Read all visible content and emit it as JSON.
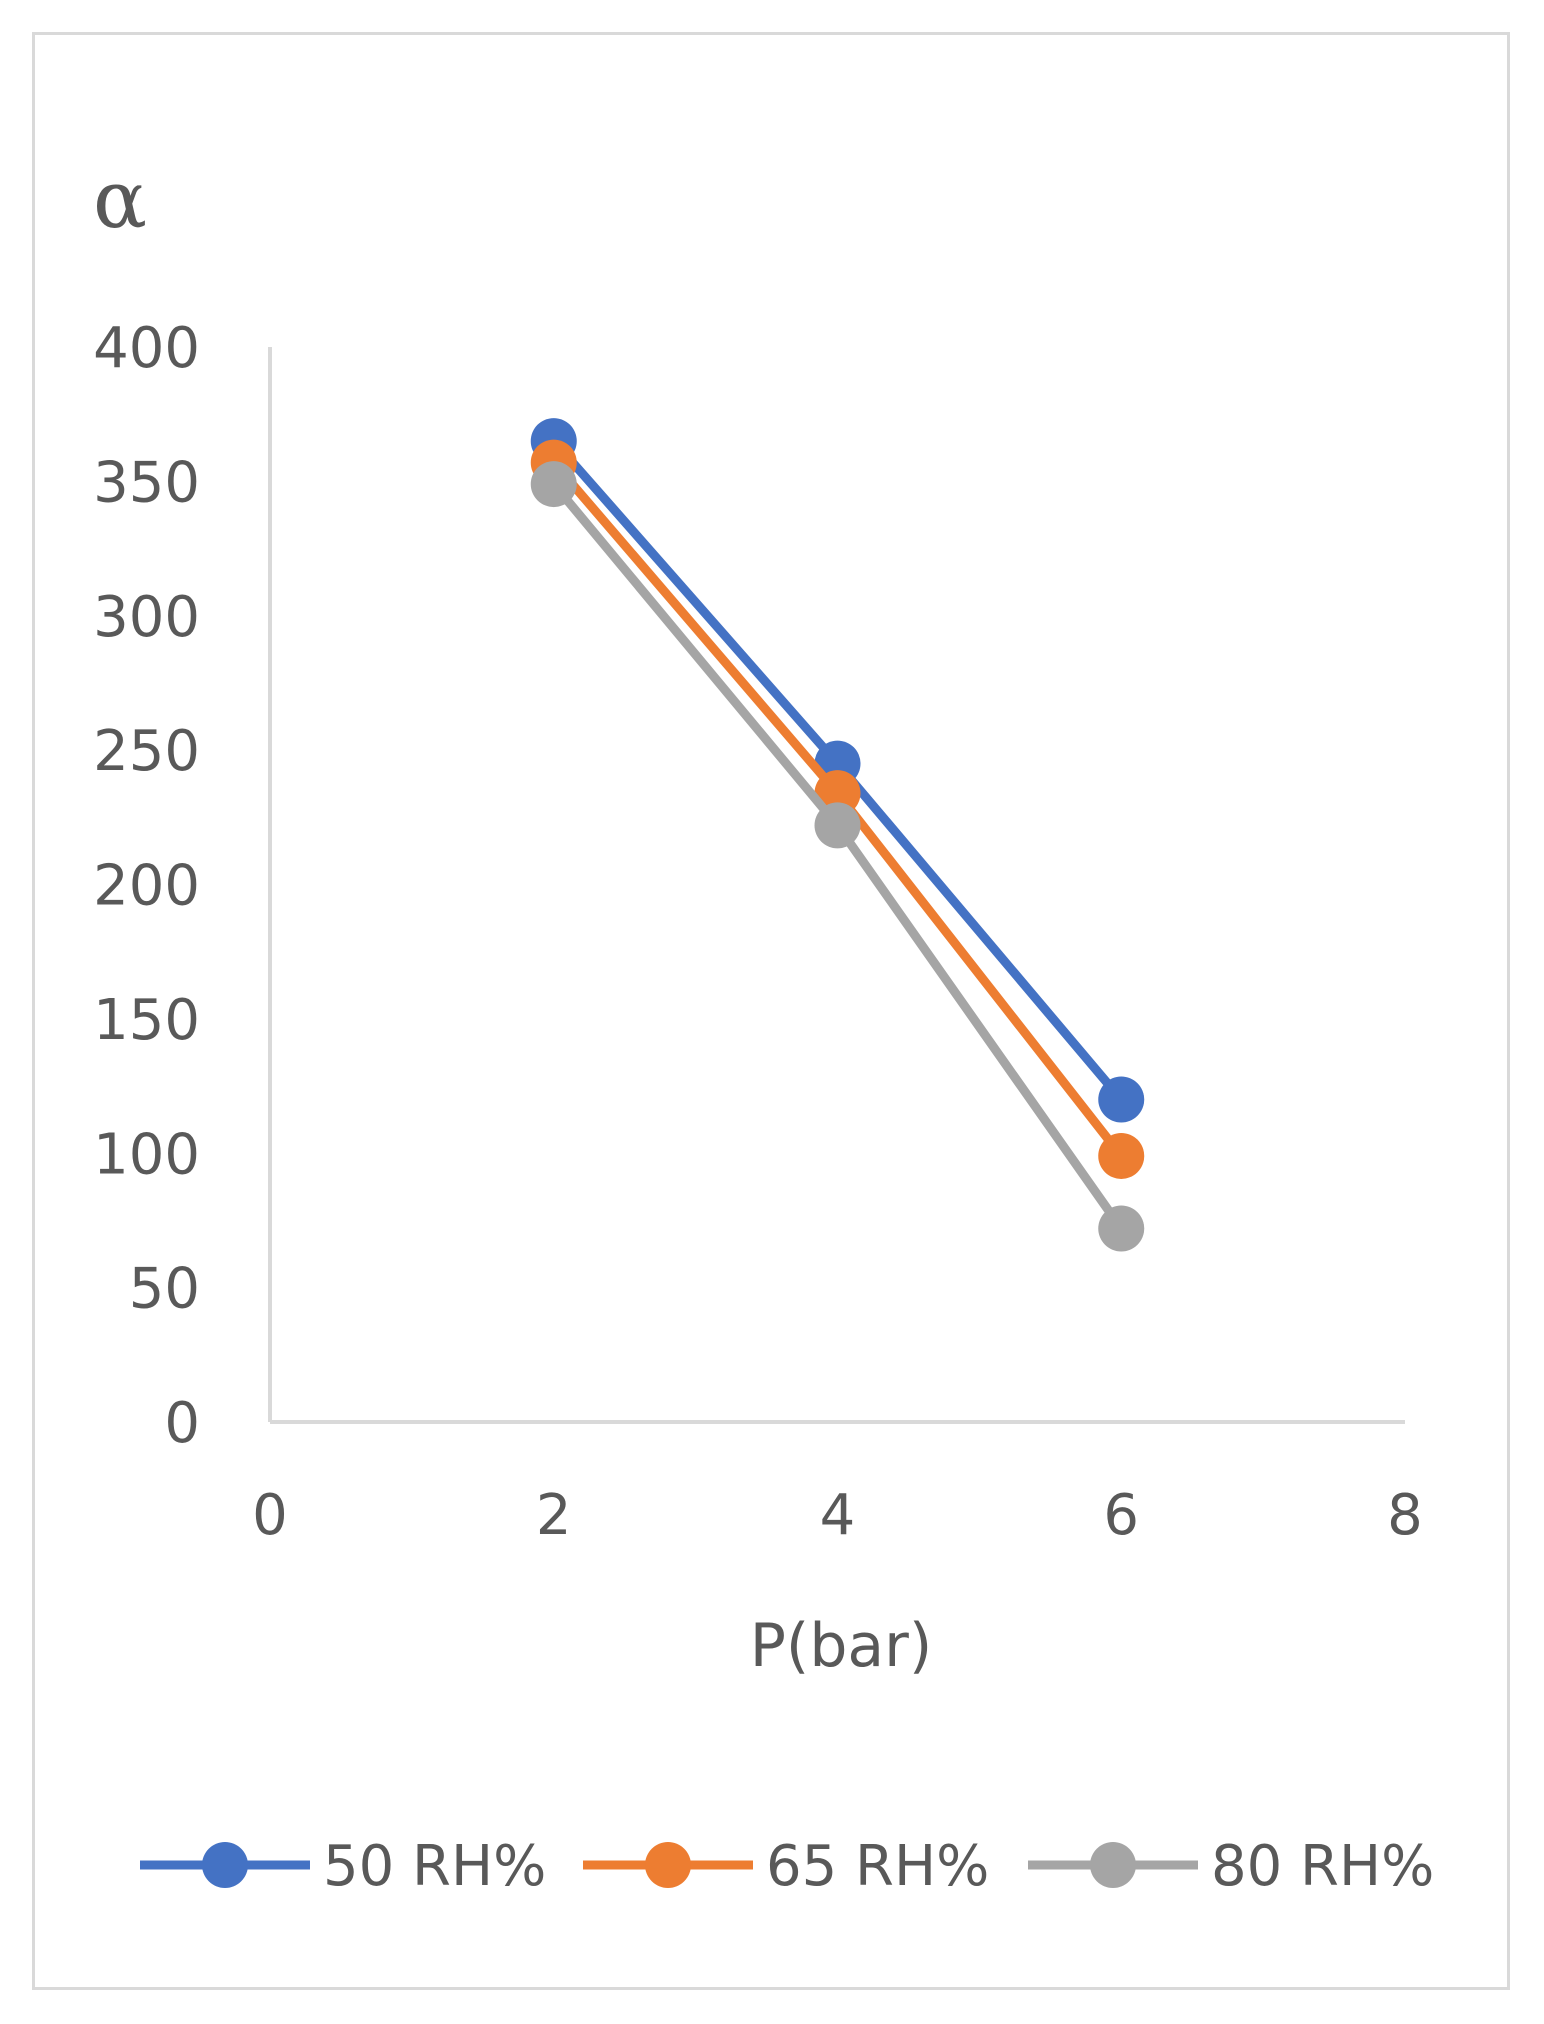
{
  "chart_data": {
    "type": "line",
    "title": "",
    "xlabel": "P(bar)",
    "ylabel": "α",
    "xlim": [
      0,
      8
    ],
    "ylim": [
      0,
      400
    ],
    "x_ticks": [
      "0",
      "2",
      "4",
      "6",
      "8"
    ],
    "y_ticks": [
      "0",
      "50",
      "100",
      "150",
      "200",
      "250",
      "300",
      "350",
      "400"
    ],
    "grid": false,
    "legend_position": "bottom",
    "series": [
      {
        "name": "50 RH%",
        "color": "#4472c4",
        "x": [
          2,
          4,
          6
        ],
        "y": [
          365,
          245,
          120
        ]
      },
      {
        "name": "65 RH%",
        "color": "#ed7d31",
        "x": [
          2,
          4,
          6
        ],
        "y": [
          357,
          234,
          99
        ]
      },
      {
        "name": "80 RH%",
        "color": "#a5a5a5",
        "x": [
          2,
          4,
          6
        ],
        "y": [
          349,
          222,
          72
        ]
      }
    ]
  }
}
